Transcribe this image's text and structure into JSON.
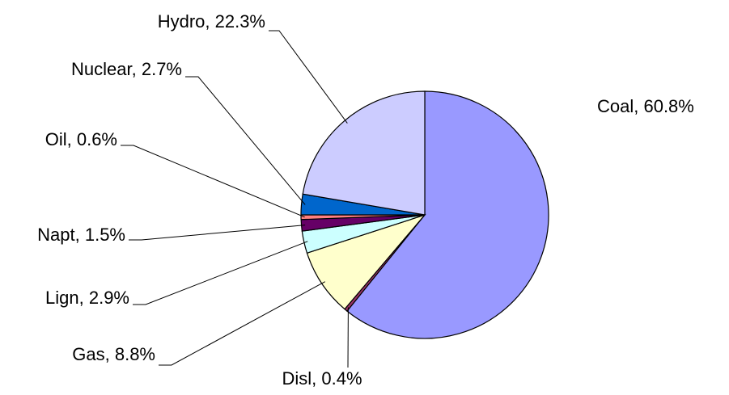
{
  "chart_data": {
    "type": "pie",
    "values": [
      60.8,
      0.4,
      8.8,
      2.9,
      1.5,
      0.6,
      2.7,
      22.3
    ],
    "value_labels": [
      "Coal, 60.8%",
      "Disl, 0.4%",
      "Gas, 8.8%",
      "Lign, 2.9%",
      "Napt, 1.5%",
      "Oil, 0.6%",
      "Nuclear, 2.7%",
      "Hydro, 22.3%"
    ],
    "colors": [
      "#9999ff",
      "#993366",
      "#ffffcc",
      "#ccffff",
      "#660066",
      "#ff8080",
      "#0066cc",
      "#ccccff"
    ]
  }
}
